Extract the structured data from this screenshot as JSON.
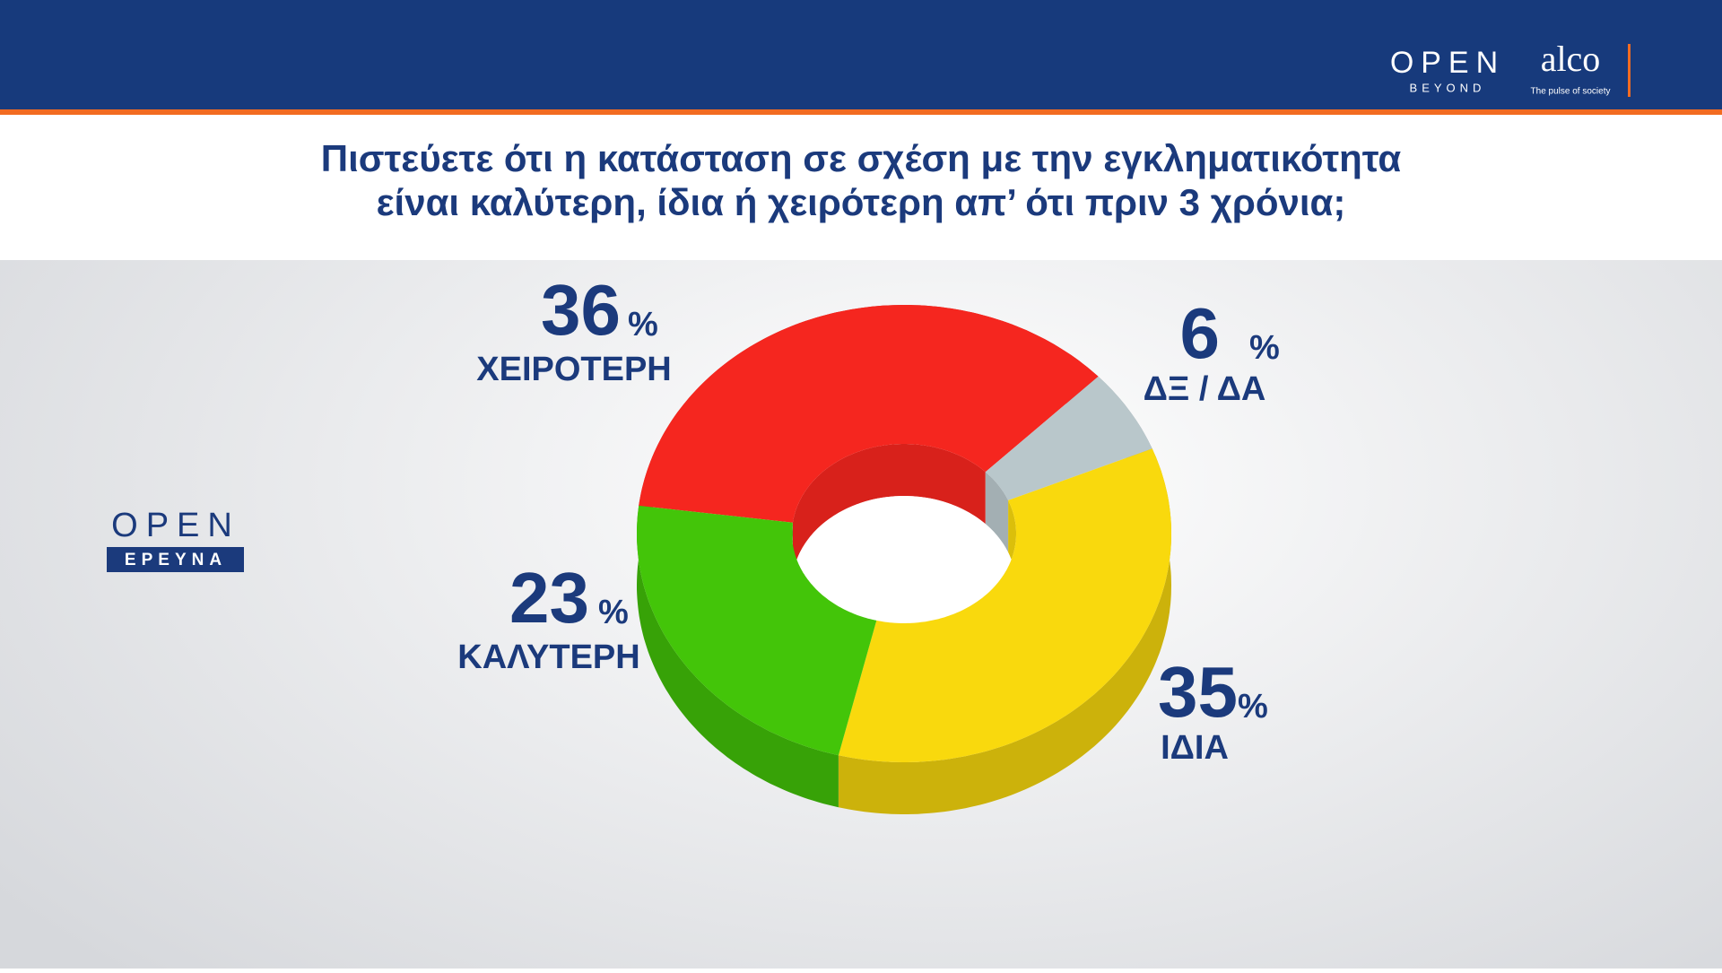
{
  "header": {
    "brand": "OPEN",
    "brand_sub": "BEYOND",
    "partner": "alco",
    "partner_sub": "The pulse of society"
  },
  "side_logo": {
    "brand": "OPEN",
    "brand_sub": "ΕΡΕΥΝΑ"
  },
  "chart_data": {
    "type": "donut3d",
    "title": [
      "Πιστεύετε ότι η κατάσταση σε σχέση με την εγκληματικότητα",
      "είναι καλύτερη, ίδια ή χειρότερη απ’  ότι πριν 3 χρόνια;"
    ],
    "categories": [
      "ΧΕΙΡΟΤΕΡΗ",
      "ΔΞ / ΔΑ",
      "ΙΔΙΑ",
      "ΚΑΛΥΤΕΡΗ"
    ],
    "values": [
      36,
      6,
      35,
      23
    ],
    "unit": "%",
    "colors": [
      "#f5261f",
      "#b9c7cb",
      "#f9d90d",
      "#43c509"
    ]
  }
}
